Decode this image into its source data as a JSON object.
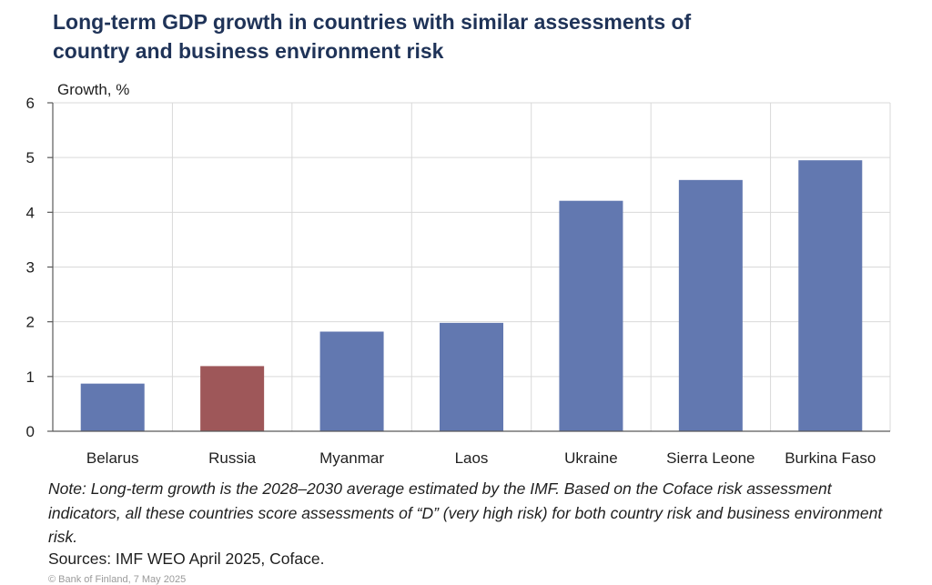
{
  "title_lines": [
    "Long-term GDP growth in countries with similar assessments of",
    "country and business environment risk"
  ],
  "note": "Note: Long-term growth is the 2028–2030 average estimated by the IMF. Based on the Coface risk assessment indicators, all these countries score assessments of “D” (very high risk) for both country risk and business environment risk.",
  "sources": "Sources: IMF WEO April 2025, Coface.",
  "copyright": "© Bank of Finland, 7 May 2025",
  "colors": {
    "default_bar": "#6278b0",
    "highlight_bar": "#9e5759",
    "grid": "#d9d9d9",
    "axis": "#595959",
    "title": "#1f3358"
  },
  "chart_data": {
    "type": "bar",
    "title": "Long-term GDP growth in countries with similar assessments of country and business environment risk",
    "ylabel": "Growth, %",
    "xlabel": "",
    "categories": [
      "Belarus",
      "Russia",
      "Myanmar",
      "Laos",
      "Ukraine",
      "Sierra Leone",
      "Burkina Faso"
    ],
    "values": [
      0.87,
      1.19,
      1.82,
      1.98,
      4.21,
      4.59,
      4.95
    ],
    "highlight": [
      "Russia"
    ],
    "ylim": [
      0,
      6
    ],
    "yticks": [
      "0",
      "1",
      "2",
      "3",
      "4",
      "5",
      "6"
    ],
    "grid": true,
    "legend": "none"
  }
}
